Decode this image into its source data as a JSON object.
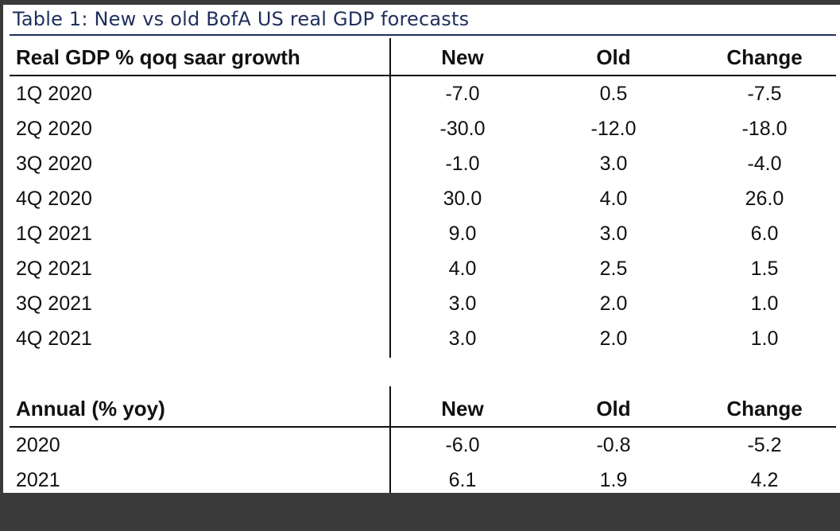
{
  "title": "Table 1: New vs old BofA US real GDP forecasts",
  "quarterly": {
    "headers": [
      "Real GDP % qoq saar growth",
      "New",
      "Old",
      "Change"
    ],
    "rows": [
      [
        "1Q 2020",
        "-7.0",
        "0.5",
        "-7.5"
      ],
      [
        "2Q 2020",
        "-30.0",
        "-12.0",
        "-18.0"
      ],
      [
        "3Q 2020",
        "-1.0",
        "3.0",
        "-4.0"
      ],
      [
        "4Q 2020",
        "30.0",
        "4.0",
        "26.0"
      ],
      [
        "1Q 2021",
        "9.0",
        "3.0",
        "6.0"
      ],
      [
        "2Q 2021",
        "4.0",
        "2.5",
        "1.5"
      ],
      [
        "3Q 2021",
        "3.0",
        "2.0",
        "1.0"
      ],
      [
        "4Q 2021",
        "3.0",
        "2.0",
        "1.0"
      ]
    ]
  },
  "annual": {
    "headers": [
      "Annual (% yoy)",
      "New",
      "Old",
      "Change"
    ],
    "rows": [
      [
        "2020",
        "-6.0",
        "-0.8",
        "-5.2"
      ],
      [
        "2021",
        "6.1",
        "1.9",
        "4.2"
      ]
    ]
  }
}
